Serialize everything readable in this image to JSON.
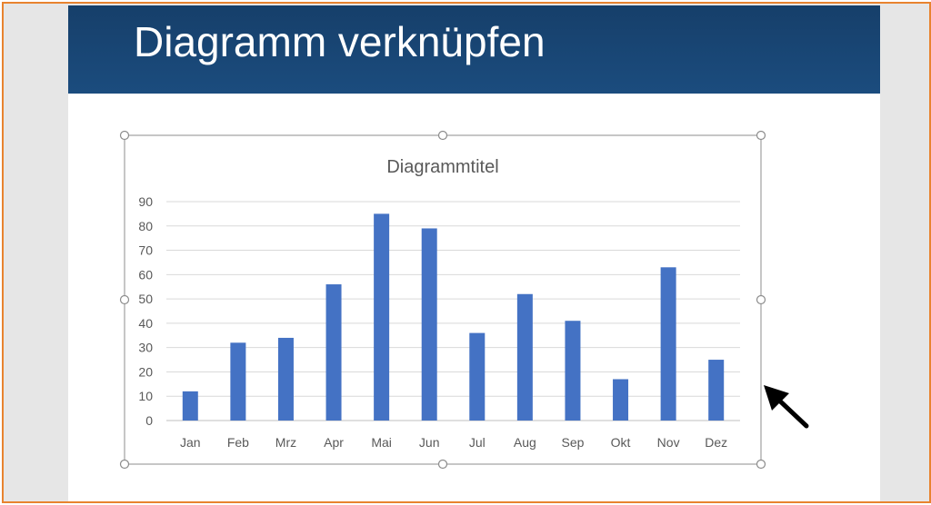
{
  "slide": {
    "title": "Diagramm verknüpfen"
  },
  "colors": {
    "banner": "#174676",
    "bar": "#4472c4",
    "frame_border": "#e8832f",
    "canvas": "#e6e6e6"
  },
  "icons": {
    "pointer": "arrow-pointer-icon",
    "resize": "resize-handle-icon"
  },
  "chart_data": {
    "type": "bar",
    "title": "Diagrammtitel",
    "categories": [
      "Jan",
      "Feb",
      "Mrz",
      "Apr",
      "Mai",
      "Jun",
      "Jul",
      "Aug",
      "Sep",
      "Okt",
      "Nov",
      "Dez"
    ],
    "values": [
      12,
      32,
      34,
      56,
      85,
      79,
      36,
      52,
      41,
      17,
      63,
      25
    ],
    "yticks": [
      "0",
      "10",
      "20",
      "30",
      "40",
      "50",
      "60",
      "70",
      "80",
      "90"
    ],
    "ylim": [
      0,
      90
    ],
    "xlabel": "",
    "ylabel": "",
    "grid": true,
    "legend": "none",
    "selected": true
  }
}
